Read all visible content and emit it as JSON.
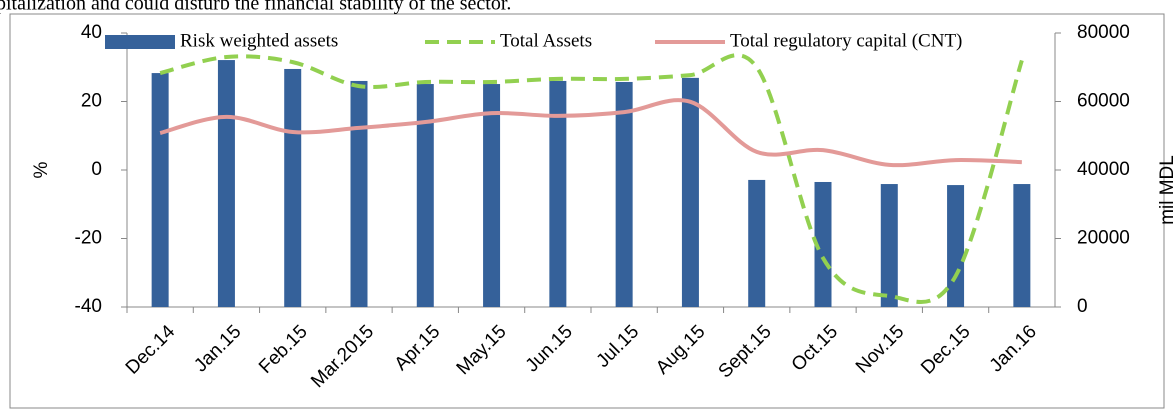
{
  "caption": "pitalization and could disturb the financial stability of the sector.",
  "chart_data": {
    "type": "bar_line",
    "ylabel": "%",
    "y2label": "mil MDL",
    "categories": [
      "Dec.14",
      "Jan.15",
      "Feb.15",
      "Mar.2015",
      "Apr.15",
      "May.15",
      "Jun.15",
      "Jul.15",
      "Aug.15",
      "Sept.15",
      "Oct.15",
      "Nov.15",
      "Dec.15",
      "Jan.16"
    ],
    "ylim": [
      -40,
      40
    ],
    "yticks": [
      -40,
      -20,
      0,
      20,
      40
    ],
    "y2lim": [
      0,
      80000
    ],
    "y2ticks": [
      0,
      20000,
      40000,
      60000,
      80000
    ],
    "series": [
      {
        "name": "Risk weighted assets",
        "kind": "bar",
        "axis": "y2",
        "color": "#35619a",
        "values": [
          68300,
          72100,
          69500,
          66000,
          65100,
          65100,
          66000,
          65700,
          66900,
          37100,
          36500,
          35900,
          35600,
          35900
        ]
      },
      {
        "name": "Total Assets",
        "kind": "line",
        "dashed": true,
        "color": "#92d050",
        "values": [
          28.3,
          33,
          31.5,
          24.5,
          25.7,
          25.7,
          26.6,
          26.6,
          27.7,
          30,
          -25.7,
          -36.8,
          -31,
          32
        ]
      },
      {
        "name": "Total regulatory capital (CNT)",
        "kind": "line",
        "dashed": false,
        "color": "#e39a98",
        "values": [
          10.8,
          15.5,
          11.1,
          12.3,
          14,
          16.6,
          15.8,
          16.9,
          19.9,
          5.3,
          5.8,
          1.5,
          2.9,
          2.3
        ]
      }
    ]
  }
}
